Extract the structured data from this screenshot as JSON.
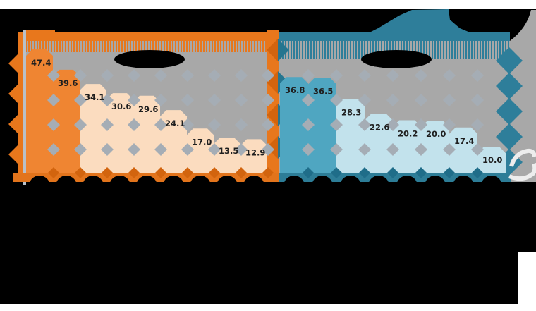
{
  "page": {
    "background": "#000000",
    "margin_color": "#ffffff"
  },
  "chart_data": {
    "type": "bar",
    "orientation": "vertical",
    "plot_background": "#a8a8a8",
    "pattern_diamond_color": "#a5adb5",
    "value_label_color": "#1f1f1f",
    "groups": [
      {
        "side": "left",
        "values": [
          47.4,
          39.6,
          34.1,
          30.6,
          29.6,
          24.1,
          17.0,
          13.5,
          12.9
        ],
        "highlighted_indices": [
          0,
          1
        ],
        "bar_color_highlight": "#ef8532",
        "bar_color": "#fbdcbf",
        "band_color": "#e8771c",
        "deco_color": "#d2640e"
      },
      {
        "side": "right",
        "values": [
          36.8,
          36.5,
          28.3,
          22.6,
          20.2,
          20.0,
          17.4,
          10.0
        ],
        "highlighted_indices": [
          0,
          1
        ],
        "bar_color_highlight": "#4fa6c1",
        "bar_color": "#c2e2ec",
        "band_color": "#2e7e9a",
        "deco_color": "#1f6d89"
      }
    ],
    "note": "Title, group labels and category labels are solid black (illegible) regions in the source image; only numeric bar values are visible."
  }
}
